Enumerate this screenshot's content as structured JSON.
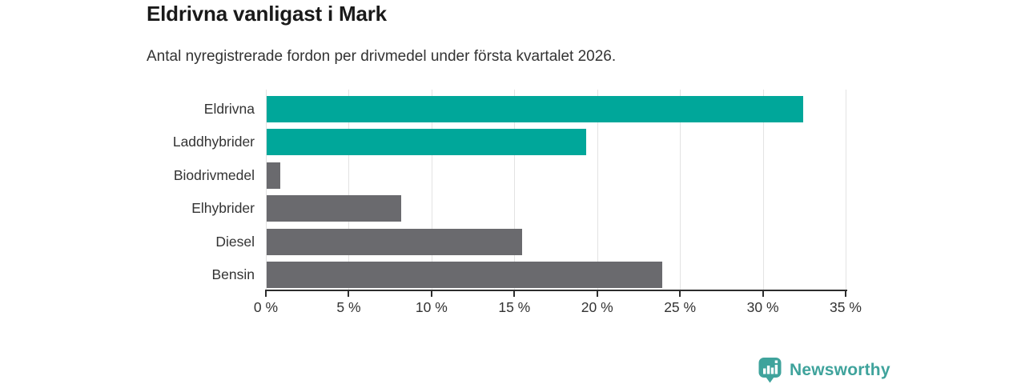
{
  "chart_data": {
    "type": "bar",
    "orientation": "horizontal",
    "title": "Eldrivna vanligast i Mark",
    "subtitle": "Antal nyregistrerade fordon per drivmedel under första kvartalet 2026.",
    "categories": [
      "Eldrivna",
      "Laddhybrider",
      "Biodrivmedel",
      "Elhybrider",
      "Diesel",
      "Bensin"
    ],
    "values": [
      32.4,
      19.3,
      0.8,
      8.1,
      15.4,
      23.9
    ],
    "unit": "%",
    "bar_colors": [
      "#00a79a",
      "#00a79a",
      "#6a6a6e",
      "#6a6a6e",
      "#6a6a6e",
      "#6a6a6e"
    ],
    "highlight_color": "#00a79a",
    "default_color": "#6a6a6e",
    "xlim": [
      0,
      35
    ],
    "x_tick_values": [
      0,
      5,
      10,
      15,
      20,
      25,
      30,
      35
    ],
    "x_tick_labels": [
      "0 %",
      "5 %",
      "10 %",
      "15 %",
      "20 %",
      "25 %",
      "30 %",
      "35 %"
    ],
    "grid": true,
    "legend": false,
    "gridline_color": "#e3e3e3",
    "axis_color": "#2d2d2d",
    "label_color": "#333333"
  },
  "branding": {
    "text": "Newsworthy",
    "color": "#3fa39c",
    "icon": "newsworthy-bar-chart-pin-icon"
  }
}
